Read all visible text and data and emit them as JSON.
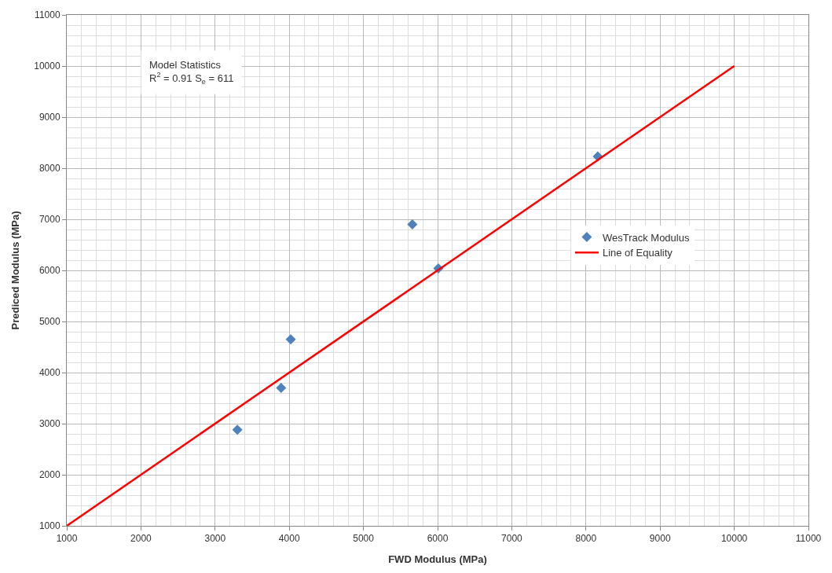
{
  "chart_data": {
    "type": "scatter",
    "xlabel": "FWD Modulus (MPa)",
    "ylabel": "Prediced Modulus (MPa)",
    "annotations": [
      "Model Statistics\nR$^{2}$ = 0.91 S$_{e}$ = 611"
    ],
    "series": [
      {
        "name": "WesTrack Modulus",
        "color": "#4f81bd",
        "marker": "diamond",
        "x": [
          3300,
          3890,
          4020,
          5660,
          6010,
          8160
        ],
        "values": [
          2880,
          3700,
          4650,
          6900,
          6040,
          8230
        ]
      },
      {
        "name": "Line of Equality",
        "type": "line",
        "color": "#ff0000",
        "marker": "none",
        "line_style": "solid",
        "x": [
          1000,
          10000
        ],
        "values": [
          1000,
          10000
        ]
      }
    ],
    "xlim": [
      1000,
      11000
    ],
    "ylim": [
      1000,
      11000
    ],
    "xticks": [
      1000,
      2000,
      3000,
      4000,
      5000,
      6000,
      7000,
      8000,
      9000,
      10000,
      11000
    ],
    "yticks": [
      1000,
      2000,
      3000,
      4000,
      5000,
      6000,
      7000,
      8000,
      9000,
      10000,
      11000
    ],
    "grid": true,
    "legend": "right"
  }
}
